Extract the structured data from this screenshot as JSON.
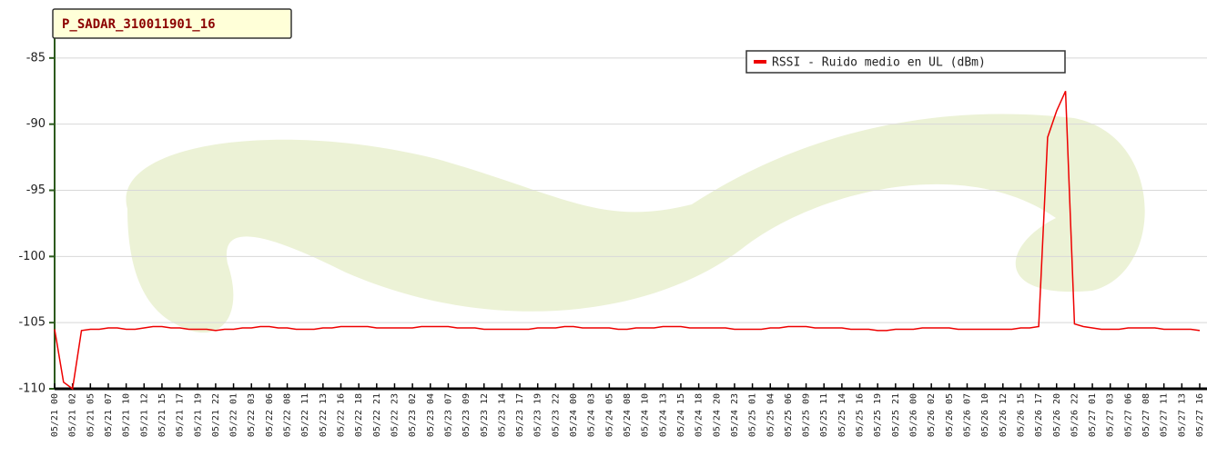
{
  "chart_data": {
    "type": "line",
    "title": "P_SADAR_310011901_16",
    "categories": [
      "05/21 00",
      null,
      "05/21 02",
      null,
      "05/21 05",
      null,
      "05/21 07",
      null,
      "05/21 10",
      null,
      "05/21 12",
      null,
      "05/21 15",
      null,
      "05/21 17",
      null,
      "05/21 19",
      null,
      "05/21 22",
      null,
      "05/22 01",
      null,
      "05/22 03",
      null,
      "05/22 06",
      null,
      "05/22 08",
      null,
      "05/22 11",
      null,
      "05/22 13",
      null,
      "05/22 16",
      null,
      "05/22 18",
      null,
      "05/22 21",
      null,
      "05/22 23",
      null,
      "05/23 02",
      null,
      "05/23 04",
      null,
      "05/23 07",
      null,
      "05/23 09",
      null,
      "05/23 12",
      null,
      "05/23 14",
      null,
      "05/23 17",
      null,
      "05/23 19",
      null,
      "05/23 22",
      null,
      "05/24 00",
      null,
      "05/24 03",
      null,
      "05/24 05",
      null,
      "05/24 08",
      null,
      "05/24 10",
      null,
      "05/24 13",
      null,
      "05/24 15",
      null,
      "05/24 18",
      null,
      "05/24 20",
      null,
      "05/24 23",
      null,
      "05/25 01",
      null,
      "05/25 04",
      null,
      "05/25 06",
      null,
      "05/25 09",
      null,
      "05/25 11",
      null,
      "05/25 14",
      null,
      "05/25 16",
      null,
      "05/25 19",
      null,
      "05/25 21",
      null,
      "05/26 00",
      null,
      "05/26 02",
      null,
      "05/26 05",
      null,
      "05/26 07",
      null,
      "05/26 10",
      null,
      "05/26 12",
      null,
      "05/26 15",
      null,
      "05/26 17",
      null,
      "05/26 20",
      null,
      "05/26 22",
      null,
      "05/27 01",
      null,
      "05/27 03",
      null,
      "05/27 06",
      null,
      "05/27 08",
      null,
      "05/27 11",
      null,
      "05/27 13",
      null,
      "05/27 16"
    ],
    "series": [
      {
        "name": "RSSI - Ruido medio en UL (dBm)",
        "color": "#ee0000",
        "values": [
          -105.5,
          -109.5,
          -110,
          -105.6,
          -105.5,
          -105.5,
          -105.4,
          -105.4,
          -105.5,
          -105.5,
          -105.4,
          -105.3,
          -105.3,
          -105.4,
          -105.4,
          -105.5,
          -105.5,
          -105.5,
          -105.6,
          -105.5,
          -105.5,
          -105.4,
          -105.4,
          -105.3,
          -105.3,
          -105.4,
          -105.4,
          -105.5,
          -105.5,
          -105.5,
          -105.4,
          -105.4,
          -105.3,
          -105.3,
          -105.3,
          -105.3,
          -105.4,
          -105.4,
          -105.4,
          -105.4,
          -105.4,
          -105.3,
          -105.3,
          -105.3,
          -105.3,
          -105.4,
          -105.4,
          -105.4,
          -105.5,
          -105.5,
          -105.5,
          -105.5,
          -105.5,
          -105.5,
          -105.4,
          -105.4,
          -105.4,
          -105.3,
          -105.3,
          -105.4,
          -105.4,
          -105.4,
          -105.4,
          -105.5,
          -105.5,
          -105.4,
          -105.4,
          -105.4,
          -105.3,
          -105.3,
          -105.3,
          -105.4,
          -105.4,
          -105.4,
          -105.4,
          -105.4,
          -105.5,
          -105.5,
          -105.5,
          -105.5,
          -105.4,
          -105.4,
          -105.3,
          -105.3,
          -105.3,
          -105.4,
          -105.4,
          -105.4,
          -105.4,
          -105.5,
          -105.5,
          -105.5,
          -105.6,
          -105.6,
          -105.5,
          -105.5,
          -105.5,
          -105.4,
          -105.4,
          -105.4,
          -105.4,
          -105.5,
          -105.5,
          -105.5,
          -105.5,
          -105.5,
          -105.5,
          -105.5,
          -105.4,
          -105.4,
          -105.3,
          -91,
          -89,
          -87.5,
          -105.1,
          -105.3,
          -105.4,
          -105.5,
          -105.5,
          -105.5,
          -105.4,
          -105.4,
          -105.4,
          -105.4,
          -105.5,
          -105.5,
          -105.5,
          -105.5,
          -105.6
        ]
      }
    ],
    "ylim": [
      -110,
      -83.5
    ],
    "yticks": [
      -110,
      -105,
      -100,
      -95,
      -90,
      -85
    ],
    "grid": true,
    "legend": "top-right"
  }
}
